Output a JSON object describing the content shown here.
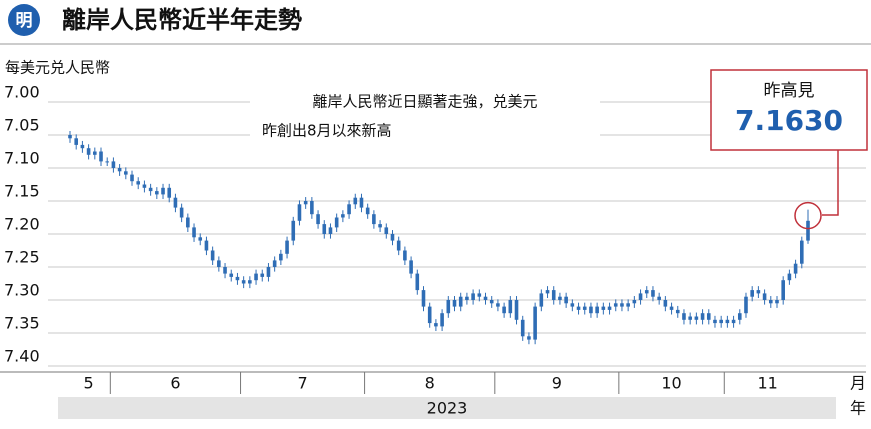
{
  "logo": "明",
  "chart_data": {
    "type": "candlestick",
    "title": "離岸人民幣近半年走勢",
    "y_label": "每美元兑人民幣",
    "x_unit": "月",
    "year_unit": "年",
    "year": "2023",
    "color": "#2f6db5",
    "y_inverted": true,
    "ylim": [
      7.0,
      7.4
    ],
    "yticks": [
      {
        "value": 7.0,
        "label": "7.00"
      },
      {
        "value": 7.05,
        "label": "7.05"
      },
      {
        "value": 7.1,
        "label": "7.10"
      },
      {
        "value": 7.15,
        "label": "7.15"
      },
      {
        "value": 7.2,
        "label": "7.20"
      },
      {
        "value": 7.25,
        "label": "7.25"
      },
      {
        "value": 7.3,
        "label": "7.30"
      },
      {
        "value": 7.35,
        "label": "7.35"
      },
      {
        "value": 7.4,
        "label": "7.40"
      }
    ],
    "grid": true,
    "annotation": [
      "離岸人民幣近日顯著走強，兑美元",
      "昨創出8月以來新高"
    ],
    "callout": {
      "title": "昨高見",
      "value": 7.163,
      "label": "7.1630"
    },
    "x": [
      "5",
      "5",
      "5",
      "5",
      "5",
      "5",
      "5",
      "6",
      "6",
      "6",
      "6",
      "6",
      "6",
      "6",
      "6",
      "6",
      "6",
      "6",
      "6",
      "6",
      "6",
      "6",
      "6",
      "6",
      "6",
      "6",
      "6",
      "6",
      "7",
      "7",
      "7",
      "7",
      "7",
      "7",
      "7",
      "7",
      "7",
      "7",
      "7",
      "7",
      "7",
      "7",
      "7",
      "7",
      "7",
      "7",
      "7",
      "7",
      "8",
      "8",
      "8",
      "8",
      "8",
      "8",
      "8",
      "8",
      "8",
      "8",
      "8",
      "8",
      "8",
      "8",
      "8",
      "8",
      "8",
      "8",
      "8",
      "8",
      "8",
      "9",
      "9",
      "9",
      "9",
      "9",
      "9",
      "9",
      "9",
      "9",
      "9",
      "9",
      "9",
      "9",
      "9",
      "9",
      "9",
      "9",
      "9",
      "9",
      "9",
      "10",
      "10",
      "10",
      "10",
      "10",
      "10",
      "10",
      "10",
      "10",
      "10",
      "10",
      "10",
      "10",
      "10",
      "10",
      "10",
      "10",
      "11",
      "11",
      "11",
      "11",
      "11",
      "11",
      "11",
      "11",
      "11",
      "11",
      "11",
      "11",
      "11",
      "11"
    ],
    "ohlc": [
      [
        7.05,
        7.062,
        7.044,
        7.055
      ],
      [
        7.055,
        7.072,
        7.049,
        7.065
      ],
      [
        7.065,
        7.077,
        7.059,
        7.07
      ],
      [
        7.07,
        7.087,
        7.064,
        7.08
      ],
      [
        7.08,
        7.087,
        7.069,
        7.075
      ],
      [
        7.075,
        7.097,
        7.069,
        7.09
      ],
      [
        7.09,
        7.097,
        7.084,
        7.09
      ],
      [
        7.09,
        7.107,
        7.084,
        7.1
      ],
      [
        7.1,
        7.112,
        7.094,
        7.105
      ],
      [
        7.105,
        7.117,
        7.099,
        7.11
      ],
      [
        7.11,
        7.127,
        7.104,
        7.12
      ],
      [
        7.12,
        7.132,
        7.114,
        7.125
      ],
      [
        7.125,
        7.137,
        7.119,
        7.13
      ],
      [
        7.13,
        7.142,
        7.124,
        7.135
      ],
      [
        7.135,
        7.147,
        7.129,
        7.14
      ],
      [
        7.14,
        7.147,
        7.124,
        7.13
      ],
      [
        7.13,
        7.152,
        7.124,
        7.145
      ],
      [
        7.145,
        7.167,
        7.139,
        7.16
      ],
      [
        7.16,
        7.182,
        7.154,
        7.175
      ],
      [
        7.175,
        7.197,
        7.169,
        7.19
      ],
      [
        7.19,
        7.212,
        7.184,
        7.205
      ],
      [
        7.205,
        7.217,
        7.199,
        7.21
      ],
      [
        7.21,
        7.232,
        7.204,
        7.225
      ],
      [
        7.225,
        7.247,
        7.219,
        7.24
      ],
      [
        7.24,
        7.257,
        7.234,
        7.25
      ],
      [
        7.25,
        7.267,
        7.244,
        7.26
      ],
      [
        7.26,
        7.272,
        7.254,
        7.265
      ],
      [
        7.265,
        7.277,
        7.259,
        7.27
      ],
      [
        7.27,
        7.282,
        7.264,
        7.275
      ],
      [
        7.275,
        7.282,
        7.264,
        7.27
      ],
      [
        7.27,
        7.277,
        7.254,
        7.26
      ],
      [
        7.26,
        7.272,
        7.254,
        7.265
      ],
      [
        7.265,
        7.272,
        7.244,
        7.25
      ],
      [
        7.25,
        7.257,
        7.234,
        7.24
      ],
      [
        7.24,
        7.247,
        7.224,
        7.23
      ],
      [
        7.23,
        7.237,
        7.204,
        7.21
      ],
      [
        7.21,
        7.217,
        7.174,
        7.18
      ],
      [
        7.18,
        7.187,
        7.149,
        7.155
      ],
      [
        7.155,
        7.162,
        7.144,
        7.15
      ],
      [
        7.15,
        7.177,
        7.144,
        7.17
      ],
      [
        7.17,
        7.192,
        7.164,
        7.185
      ],
      [
        7.185,
        7.207,
        7.179,
        7.2
      ],
      [
        7.2,
        7.207,
        7.184,
        7.19
      ],
      [
        7.19,
        7.197,
        7.169,
        7.175
      ],
      [
        7.175,
        7.182,
        7.164,
        7.17
      ],
      [
        7.17,
        7.177,
        7.149,
        7.155
      ],
      [
        7.155,
        7.162,
        7.139,
        7.145
      ],
      [
        7.145,
        7.167,
        7.139,
        7.16
      ],
      [
        7.16,
        7.177,
        7.154,
        7.17
      ],
      [
        7.17,
        7.192,
        7.164,
        7.185
      ],
      [
        7.185,
        7.197,
        7.179,
        7.19
      ],
      [
        7.19,
        7.207,
        7.184,
        7.2
      ],
      [
        7.2,
        7.217,
        7.194,
        7.21
      ],
      [
        7.21,
        7.232,
        7.204,
        7.225
      ],
      [
        7.225,
        7.247,
        7.219,
        7.24
      ],
      [
        7.24,
        7.267,
        7.234,
        7.26
      ],
      [
        7.26,
        7.292,
        7.254,
        7.285
      ],
      [
        7.285,
        7.317,
        7.279,
        7.31
      ],
      [
        7.31,
        7.342,
        7.304,
        7.335
      ],
      [
        7.335,
        7.347,
        7.329,
        7.34
      ],
      [
        7.34,
        7.347,
        7.314,
        7.32
      ],
      [
        7.32,
        7.327,
        7.294,
        7.3
      ],
      [
        7.3,
        7.317,
        7.294,
        7.31
      ],
      [
        7.31,
        7.317,
        7.289,
        7.295
      ],
      [
        7.295,
        7.307,
        7.289,
        7.3
      ],
      [
        7.3,
        7.307,
        7.284,
        7.29
      ],
      [
        7.29,
        7.302,
        7.284,
        7.295
      ],
      [
        7.295,
        7.307,
        7.289,
        7.3
      ],
      [
        7.3,
        7.312,
        7.294,
        7.305
      ],
      [
        7.305,
        7.317,
        7.299,
        7.31
      ],
      [
        7.31,
        7.327,
        7.304,
        7.32
      ],
      [
        7.32,
        7.327,
        7.294,
        7.3
      ],
      [
        7.3,
        7.337,
        7.294,
        7.33
      ],
      [
        7.33,
        7.362,
        7.324,
        7.355
      ],
      [
        7.355,
        7.367,
        7.349,
        7.36
      ],
      [
        7.36,
        7.367,
        7.304,
        7.31
      ],
      [
        7.31,
        7.317,
        7.284,
        7.29
      ],
      [
        7.29,
        7.297,
        7.279,
        7.285
      ],
      [
        7.285,
        7.307,
        7.279,
        7.3
      ],
      [
        7.3,
        7.307,
        7.289,
        7.295
      ],
      [
        7.295,
        7.312,
        7.289,
        7.305
      ],
      [
        7.305,
        7.317,
        7.299,
        7.31
      ],
      [
        7.31,
        7.322,
        7.304,
        7.315
      ],
      [
        7.315,
        7.322,
        7.304,
        7.31
      ],
      [
        7.31,
        7.327,
        7.304,
        7.32
      ],
      [
        7.32,
        7.327,
        7.304,
        7.31
      ],
      [
        7.31,
        7.322,
        7.304,
        7.315
      ],
      [
        7.315,
        7.322,
        7.304,
        7.31
      ],
      [
        7.31,
        7.317,
        7.299,
        7.305
      ],
      [
        7.305,
        7.317,
        7.299,
        7.31
      ],
      [
        7.31,
        7.317,
        7.299,
        7.305
      ],
      [
        7.305,
        7.312,
        7.294,
        7.3
      ],
      [
        7.3,
        7.307,
        7.284,
        7.29
      ],
      [
        7.29,
        7.297,
        7.279,
        7.285
      ],
      [
        7.285,
        7.302,
        7.279,
        7.295
      ],
      [
        7.295,
        7.307,
        7.289,
        7.3
      ],
      [
        7.3,
        7.317,
        7.294,
        7.31
      ],
      [
        7.31,
        7.322,
        7.304,
        7.315
      ],
      [
        7.315,
        7.327,
        7.309,
        7.32
      ],
      [
        7.32,
        7.337,
        7.314,
        7.33
      ],
      [
        7.33,
        7.337,
        7.319,
        7.325
      ],
      [
        7.325,
        7.337,
        7.319,
        7.33
      ],
      [
        7.33,
        7.337,
        7.314,
        7.32
      ],
      [
        7.32,
        7.337,
        7.314,
        7.33
      ],
      [
        7.33,
        7.342,
        7.324,
        7.335
      ],
      [
        7.335,
        7.342,
        7.324,
        7.33
      ],
      [
        7.33,
        7.342,
        7.324,
        7.335
      ],
      [
        7.335,
        7.342,
        7.324,
        7.33
      ],
      [
        7.33,
        7.337,
        7.314,
        7.32
      ],
      [
        7.32,
        7.327,
        7.289,
        7.295
      ],
      [
        7.295,
        7.302,
        7.279,
        7.285
      ],
      [
        7.285,
        7.297,
        7.279,
        7.29
      ],
      [
        7.29,
        7.307,
        7.284,
        7.3
      ],
      [
        7.3,
        7.312,
        7.294,
        7.305
      ],
      [
        7.305,
        7.312,
        7.294,
        7.3
      ],
      [
        7.3,
        7.307,
        7.264,
        7.27
      ],
      [
        7.27,
        7.277,
        7.254,
        7.26
      ],
      [
        7.26,
        7.267,
        7.239,
        7.245
      ],
      [
        7.245,
        7.252,
        7.204,
        7.21
      ],
      [
        7.21,
        7.215,
        7.163,
        7.18
      ]
    ]
  }
}
